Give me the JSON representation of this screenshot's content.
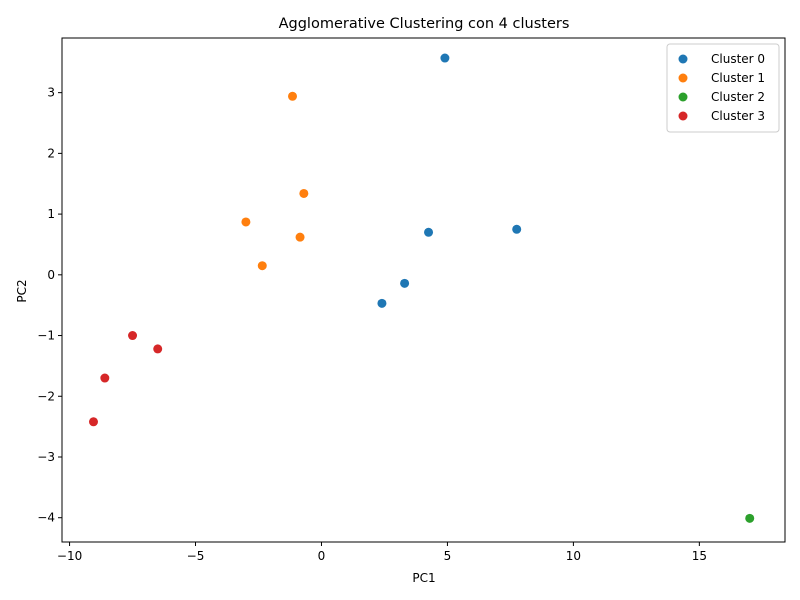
{
  "chart_data": {
    "type": "scatter",
    "title": "Agglomerative Clustering con 4 clusters",
    "xlabel": "PC1",
    "ylabel": "PC2",
    "xlim": [
      -10.3,
      18.4
    ],
    "ylim": [
      -4.4,
      3.9
    ],
    "xticks": [
      -10,
      -5,
      0,
      5,
      10,
      15
    ],
    "yticks": [
      -4,
      -3,
      -2,
      -1,
      0,
      1,
      2,
      3
    ],
    "grid": false,
    "legend_position": "top-right",
    "series": [
      {
        "name": "Cluster 0",
        "color": "#1f77b4",
        "points": [
          {
            "x": 4.9,
            "y": 3.57
          },
          {
            "x": 4.25,
            "y": 0.7
          },
          {
            "x": 7.75,
            "y": 0.75
          },
          {
            "x": 3.3,
            "y": -0.14
          },
          {
            "x": 2.4,
            "y": -0.47
          }
        ]
      },
      {
        "name": "Cluster 1",
        "color": "#ff7f0e",
        "points": [
          {
            "x": -1.15,
            "y": 2.94
          },
          {
            "x": -0.7,
            "y": 1.34
          },
          {
            "x": -3.0,
            "y": 0.87
          },
          {
            "x": -0.85,
            "y": 0.62
          },
          {
            "x": -2.35,
            "y": 0.15
          }
        ]
      },
      {
        "name": "Cluster 2",
        "color": "#2ca02c",
        "points": [
          {
            "x": 17.0,
            "y": -4.01
          }
        ]
      },
      {
        "name": "Cluster 3",
        "color": "#d62728",
        "points": [
          {
            "x": -7.5,
            "y": -1.0
          },
          {
            "x": -6.5,
            "y": -1.22
          },
          {
            "x": -8.6,
            "y": -1.7
          },
          {
            "x": -9.05,
            "y": -2.42
          }
        ]
      }
    ]
  }
}
